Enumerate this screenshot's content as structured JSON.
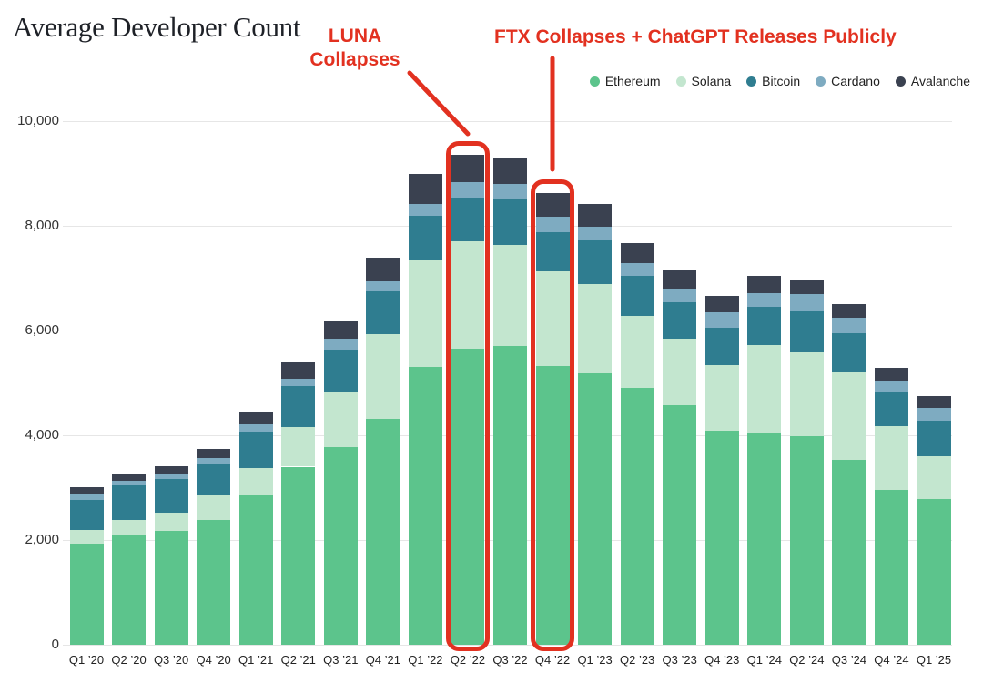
{
  "title": "Average Developer Count",
  "annotations": {
    "luna": {
      "line1": "LUNA",
      "line2": "Collapses",
      "text": "LUNA Collapses",
      "target": "Q2 ’22"
    },
    "ftx": {
      "text": "FTX Collapses + ChatGPT Releases Publicly",
      "target": "Q4 ’22"
    }
  },
  "colors": {
    "annotation_red": "#e23120",
    "grid": "#e6e6e6",
    "title_text": "#1e2127",
    "axis_text": "#333333"
  },
  "chart_data": {
    "type": "bar",
    "stacked": true,
    "title": "Average Developer Count",
    "xlabel": "",
    "ylabel": "",
    "ylim": [
      0,
      10000
    ],
    "yticks": [
      0,
      2000,
      4000,
      6000,
      8000,
      10000
    ],
    "ytick_labels": [
      "0",
      "2,000",
      "4,000",
      "6,000",
      "8,000",
      "10,000"
    ],
    "grid": true,
    "legend_position": "top-right",
    "categories": [
      "Q1 ’20",
      "Q2 ’20",
      "Q3 ’20",
      "Q4 ’20",
      "Q1 ’21",
      "Q2 ’21",
      "Q3 ’21",
      "Q4 ’21",
      "Q1 ’22",
      "Q2 ’22",
      "Q3 ’22",
      "Q4 ’22",
      "Q1 ’23",
      "Q2 ’23",
      "Q3 ’23",
      "Q4 ’23",
      "Q1 ’24",
      "Q2 ’24",
      "Q3 ’24",
      "Q4 ’24",
      "Q1 ’25"
    ],
    "series": [
      {
        "name": "Ethereum",
        "color": "#5cc48c",
        "values": [
          1930,
          2080,
          2175,
          2390,
          2850,
          3400,
          3770,
          4320,
          5300,
          5650,
          5705,
          5330,
          5185,
          4900,
          4580,
          4085,
          4055,
          3980,
          3535,
          2955,
          2785
        ]
      },
      {
        "name": "Solana",
        "color": "#c3e6cf",
        "values": [
          260,
          310,
          350,
          460,
          520,
          755,
          1055,
          1610,
          2055,
          2055,
          1930,
          1795,
          1705,
          1385,
          1270,
          1260,
          1660,
          1625,
          1680,
          1215,
          820
        ]
      },
      {
        "name": "Bitcoin",
        "color": "#2f7d90",
        "values": [
          580,
          650,
          640,
          615,
          695,
          780,
          810,
          820,
          840,
          840,
          870,
          755,
          840,
          750,
          695,
          705,
          740,
          765,
          725,
          665,
          670
        ]
      },
      {
        "name": "Cardano",
        "color": "#7eabc1",
        "values": [
          100,
          85,
          105,
          100,
          145,
          145,
          200,
          190,
          230,
          290,
          290,
          300,
          260,
          260,
          260,
          290,
          260,
          320,
          300,
          215,
          255
        ]
      },
      {
        "name": "Avalanche",
        "color": "#3a4150",
        "values": [
          135,
          135,
          145,
          175,
          245,
          320,
          365,
          445,
          560,
          520,
          490,
          440,
          435,
          375,
          360,
          320,
          330,
          270,
          260,
          240,
          210
        ]
      }
    ],
    "totals": [
      3005,
      3260,
      3415,
      3740,
      4455,
      5400,
      6200,
      7385,
      8985,
      9355,
      9285,
      8620,
      8425,
      7670,
      7165,
      6660,
      7045,
      6960,
      6500,
      5290,
      4740
    ],
    "highlighted_categories": [
      "Q2 ’22",
      "Q4 ’22"
    ]
  }
}
